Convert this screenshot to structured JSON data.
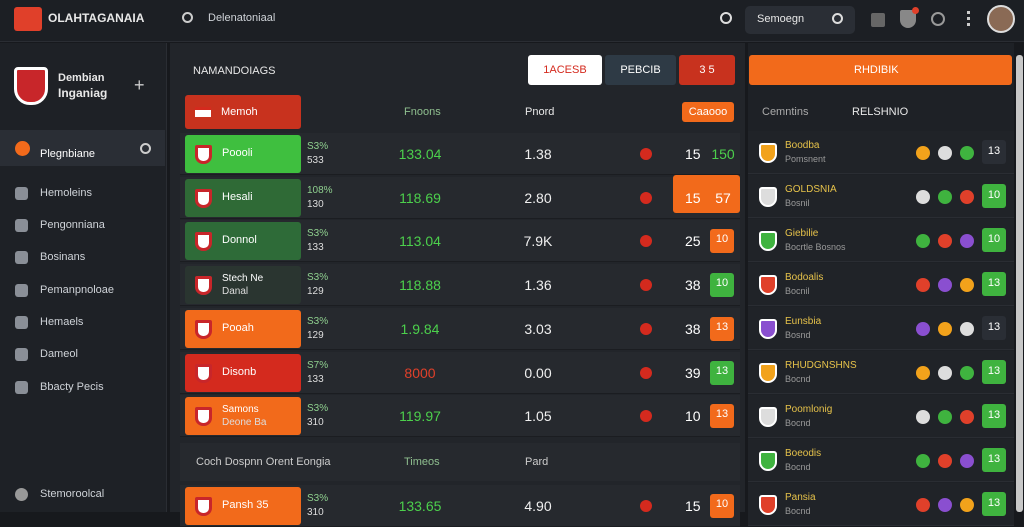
{
  "header": {
    "logo": "OLAHTAGANAIA",
    "search": "Delenatoniaal",
    "search_right": "Semoegn"
  },
  "sidebar": {
    "club": [
      "Dembian",
      "Inganiag"
    ],
    "items": [
      "Plegnbiane",
      "Hemoleins",
      "Pengonniana",
      "Bosinans",
      "Pemanpnoloae",
      "Hemaels",
      "Dameol",
      "Bbacty Pecis"
    ],
    "footer": "Stemoroolcal"
  },
  "main": {
    "title": "NAMANDOIAGS",
    "tabs": [
      "1ACESB",
      "PEBCIB",
      "3 5"
    ],
    "columns": [
      "Memoh",
      "Fnoons",
      "Pnord",
      "Caaooo"
    ],
    "rows": [
      {
        "tile": "#3fbf3f",
        "name": [
          "Poooli"
        ],
        "odds": [
          "S3%",
          "533"
        ],
        "value": "133.04",
        "value_color": "#4cd04c",
        "price": "1.38",
        "num": "15",
        "badge": "150",
        "badge_color": "#4cd04c",
        "badge_box": ""
      },
      {
        "tile": "#2f6a36",
        "name": [
          "Hesali"
        ],
        "odds": [
          "108%",
          "130"
        ],
        "value": "118.69",
        "value_color": "#4cd04c",
        "price": "2.80",
        "num": "15",
        "badge": "57",
        "badge_color": "#fff",
        "badge_box": "#f26a1b"
      },
      {
        "tile": "#2e6b38",
        "name": [
          "Donnol"
        ],
        "odds": [
          "S3%",
          "133"
        ],
        "value": "113.04",
        "value_color": "#4cd04c",
        "price": "7.9K",
        "num": "25",
        "badge": "10",
        "badge_color": "#fff",
        "badge_box": "#f26a1b"
      },
      {
        "tile": "#2a3530",
        "name": [
          "Stech Ne",
          "Danal"
        ],
        "odds": [
          "S3%",
          "129"
        ],
        "value": "118.88",
        "value_color": "#4cd04c",
        "price": "1.36",
        "num": "38",
        "badge": "10",
        "badge_color": "#fff",
        "badge_box": "#3fb33f"
      },
      {
        "tile": "#f26a1b",
        "name": [
          "Pooah"
        ],
        "odds": [
          "S3%",
          "129"
        ],
        "value": "1.9.84",
        "value_color": "#4cd04c",
        "price": "3.03",
        "num": "38",
        "badge": "13",
        "badge_color": "#fff",
        "badge_box": "#f26a1b"
      },
      {
        "tile": "#d42a1e",
        "name": [
          "Disonb"
        ],
        "odds": [
          "S7%",
          "133"
        ],
        "value": "8000",
        "value_color": "#e0402a",
        "price": "0.00",
        "num": "39",
        "badge": "13",
        "badge_color": "#fff",
        "badge_box": "#3fb33f"
      },
      {
        "tile": "#f26a1b",
        "name": [
          "Samons",
          "Deone Ba"
        ],
        "odds": [
          "S3%",
          "310"
        ],
        "value": "119.97",
        "value_color": "#4cd04c",
        "price": "1.05",
        "num": "10",
        "badge": "13",
        "badge_color": "#fff",
        "badge_box": "#f26a1b"
      }
    ],
    "section": [
      "Coch Dospnn Orent Eongia",
      "Timeos",
      "Pard"
    ],
    "last_row": {
      "tile": "#f26a1b",
      "name": [
        "Pansh 35"
      ],
      "odds": [
        "S3%",
        "310"
      ],
      "value": "133.65",
      "value_color": "#4cd04c",
      "price": "4.90",
      "num": "15",
      "badge": "10",
      "badge_color": "#fff",
      "badge_box": "#f26a1b"
    }
  },
  "right": {
    "button": "RHDIBIK",
    "headers": [
      "Cemntins",
      "RELSHNIO"
    ],
    "items": [
      {
        "name": "Boodba",
        "sub": "Pomsnent",
        "num": "13",
        "box": "#2a2e35"
      },
      {
        "name": "GOLDSNIA",
        "sub": "Bosnil",
        "num": "10",
        "box": "#3fb33f"
      },
      {
        "name": "Giebilie",
        "sub": "Bocrtle Bosnos",
        "num": "10",
        "box": "#3fb33f"
      },
      {
        "name": "Bodoalis",
        "sub": "Bocnil",
        "num": "13",
        "box": "#3fb33f"
      },
      {
        "name": "Eunsbia",
        "sub": "Bosnd",
        "num": "13",
        "box": "#2a2e35"
      },
      {
        "name": "RHUDGNSHNS",
        "sub": "Bocnd",
        "num": "13",
        "box": "#3fb33f"
      },
      {
        "name": "Poomlonig",
        "sub": "Bocnd",
        "num": "13",
        "box": "#3fb33f"
      },
      {
        "name": "Boeodis",
        "sub": "Bocnd",
        "num": "13",
        "box": "#3fb33f"
      },
      {
        "name": "Pansia",
        "sub": "Bocnd",
        "num": "13",
        "box": "#3fb33f"
      }
    ]
  }
}
